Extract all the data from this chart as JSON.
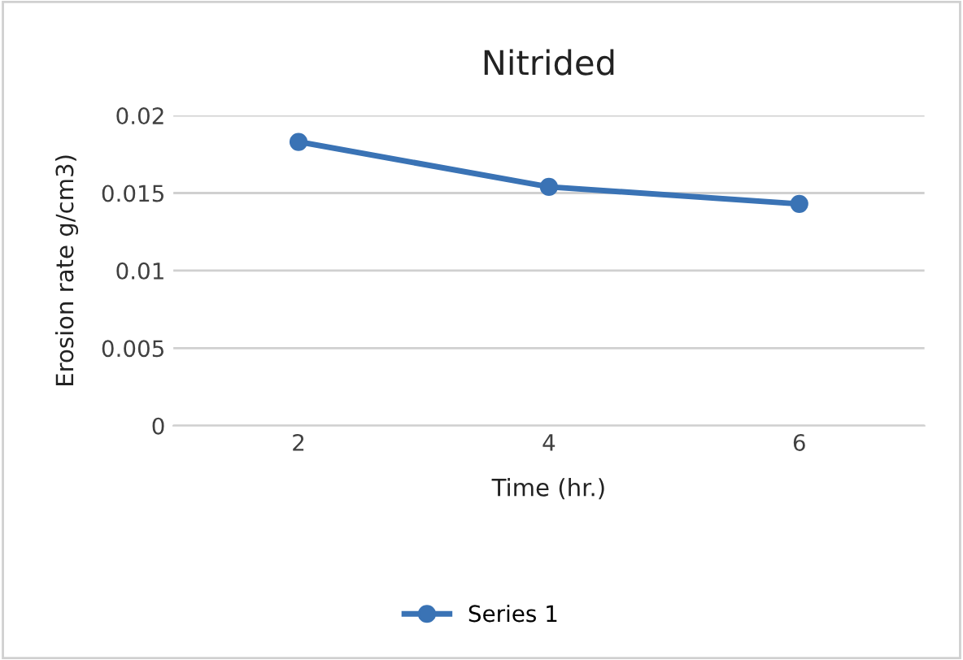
{
  "chart_data": {
    "type": "line",
    "title": "Nitrided",
    "xlabel": "Time (hr.)",
    "ylabel": "Erosion rate g/cm3)",
    "categories": [
      "2",
      "4",
      "6"
    ],
    "series": [
      {
        "name": "Series 1",
        "color": "#3a73b5",
        "values": [
          0.0183,
          0.0154,
          0.0143
        ]
      }
    ],
    "ylim": [
      0,
      0.02
    ],
    "yticks": [
      0,
      0.005,
      0.01,
      0.015,
      0.02
    ],
    "grid": "y",
    "legend": "bottom",
    "marker": "circle",
    "line_style": "solid"
  }
}
